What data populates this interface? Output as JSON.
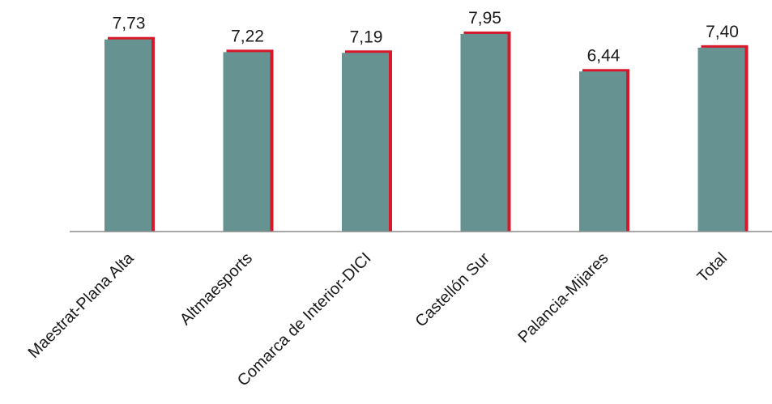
{
  "chart_data": {
    "type": "bar",
    "title": "",
    "xlabel": "",
    "ylabel": "",
    "categories": [
      "Maestrat-Plana Alta",
      "Altmaesports",
      "Comarca de Interior-DICI",
      "Castellón Sur",
      "Palancia-Mijares",
      "Total"
    ],
    "values": [
      7.73,
      7.22,
      7.19,
      7.95,
      6.44,
      7.4
    ],
    "value_labels": [
      "7,73",
      "7,22",
      "7,19",
      "7,95",
      "6,44",
      "7,40"
    ],
    "ylim": [
      0,
      8.75
    ],
    "grid": false,
    "legend": "none",
    "colors": {
      "bar": "#669392",
      "bar_shadow": "#d7182a",
      "axis": "#8c8c8c",
      "text": "#1a1a1a"
    }
  }
}
